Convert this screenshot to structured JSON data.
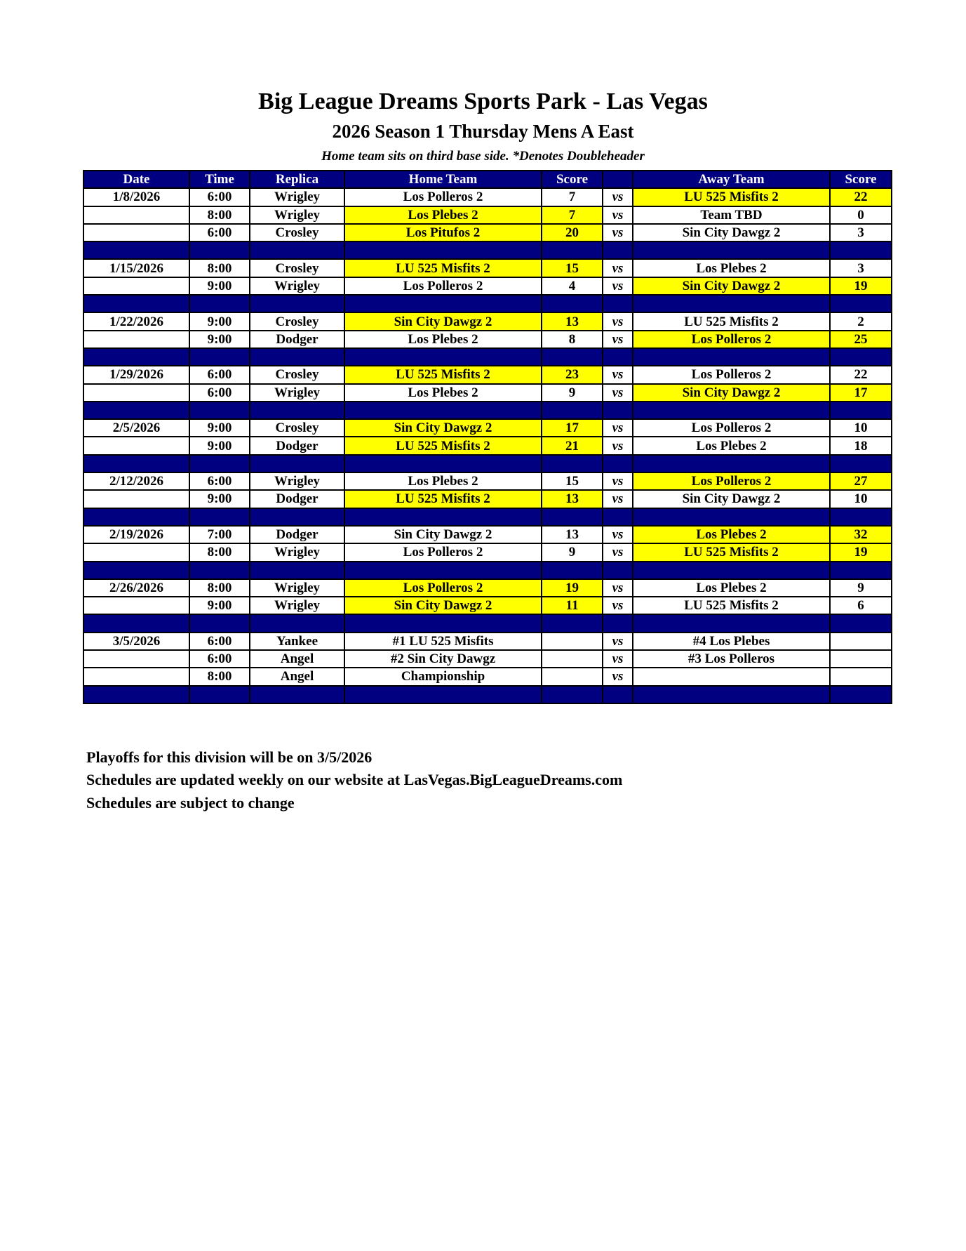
{
  "header": {
    "title": "Big League Dreams Sports Park - Las Vegas",
    "subtitle": "2026 Season 1 Thursday Mens A East",
    "note": "Home team sits on third base side.  *Denotes Doubleheader"
  },
  "colors": {
    "header_bg": "#000080",
    "winner_highlight": "#ffff00"
  },
  "table": {
    "columns": [
      "Date",
      "Time",
      "Replica",
      "Home Team",
      "Score",
      "",
      "Away Team",
      "Score"
    ],
    "rows": [
      {
        "date": "1/8/2026",
        "time": "6:00",
        "replica": "Wrigley",
        "home": "Los Polleros 2",
        "home_score": "7",
        "vs": "vs",
        "away": "LU 525 Misfits 2",
        "away_score": "22",
        "winner": "away"
      },
      {
        "date": "",
        "time": "8:00",
        "replica": "Wrigley",
        "home": "Los Plebes 2",
        "home_score": "7",
        "vs": "vs",
        "away": "Team TBD",
        "away_score": "0",
        "winner": "home"
      },
      {
        "date": "",
        "time": "6:00",
        "replica": "Crosley",
        "home": "Los Pitufos 2",
        "home_score": "20",
        "vs": "vs",
        "away": "Sin City Dawgz 2",
        "away_score": "3",
        "winner": "home"
      },
      {
        "separator": true
      },
      {
        "date": "1/15/2026",
        "time": "8:00",
        "replica": "Crosley",
        "home": "LU 525 Misfits 2",
        "home_score": "15",
        "vs": "vs",
        "away": "Los Plebes 2",
        "away_score": "3",
        "winner": "home"
      },
      {
        "date": "",
        "time": "9:00",
        "replica": "Wrigley",
        "home": "Los Polleros 2",
        "home_score": "4",
        "vs": "vs",
        "away": "Sin City Dawgz 2",
        "away_score": "19",
        "winner": "away"
      },
      {
        "separator": true
      },
      {
        "date": "1/22/2026",
        "time": "9:00",
        "replica": "Crosley",
        "home": "Sin City Dawgz 2",
        "home_score": "13",
        "vs": "vs",
        "away": "LU 525 Misfits 2",
        "away_score": "2",
        "winner": "home"
      },
      {
        "date": "",
        "time": "9:00",
        "replica": "Dodger",
        "home": "Los Plebes 2",
        "home_score": "8",
        "vs": "vs",
        "away": "Los Polleros 2",
        "away_score": "25",
        "winner": "away"
      },
      {
        "separator": true
      },
      {
        "date": "1/29/2026",
        "time": "6:00",
        "replica": "Crosley",
        "home": "LU 525 Misfits 2",
        "home_score": "23",
        "vs": "vs",
        "away": "Los Polleros 2",
        "away_score": "22",
        "winner": "home"
      },
      {
        "date": "",
        "time": "6:00",
        "replica": "Wrigley",
        "home": "Los Plebes 2",
        "home_score": "9",
        "vs": "vs",
        "away": "Sin City Dawgz 2",
        "away_score": "17",
        "winner": "away"
      },
      {
        "separator": true
      },
      {
        "date": "2/5/2026",
        "time": "9:00",
        "replica": "Crosley",
        "home": "Sin City Dawgz 2",
        "home_score": "17",
        "vs": "vs",
        "away": "Los Polleros 2",
        "away_score": "10",
        "winner": "home"
      },
      {
        "date": "",
        "time": "9:00",
        "replica": "Dodger",
        "home": "LU 525 Misfits 2",
        "home_score": "21",
        "vs": "vs",
        "away": "Los Plebes 2",
        "away_score": "18",
        "winner": "home"
      },
      {
        "separator": true
      },
      {
        "date": "2/12/2026",
        "time": "6:00",
        "replica": "Wrigley",
        "home": "Los Plebes 2",
        "home_score": "15",
        "vs": "vs",
        "away": "Los Polleros 2",
        "away_score": "27",
        "winner": "away"
      },
      {
        "date": "",
        "time": "9:00",
        "replica": "Dodger",
        "home": "LU 525 Misfits 2",
        "home_score": "13",
        "vs": "vs",
        "away": "Sin City Dawgz 2",
        "away_score": "10",
        "winner": "home"
      },
      {
        "separator": true
      },
      {
        "date": "2/19/2026",
        "time": "7:00",
        "replica": "Dodger",
        "home": "Sin City Dawgz 2",
        "home_score": "13",
        "vs": "vs",
        "away": "Los Plebes 2",
        "away_score": "32",
        "winner": "away"
      },
      {
        "date": "",
        "time": "8:00",
        "replica": "Wrigley",
        "home": "Los Polleros 2",
        "home_score": "9",
        "vs": "vs",
        "away": "LU 525 Misfits 2",
        "away_score": "19",
        "winner": "away"
      },
      {
        "separator": true
      },
      {
        "date": "2/26/2026",
        "time": "8:00",
        "replica": "Wrigley",
        "home": "Los Polleros 2",
        "home_score": "19",
        "vs": "vs",
        "away": "Los Plebes 2",
        "away_score": "9",
        "winner": "home"
      },
      {
        "date": "",
        "time": "9:00",
        "replica": "Wrigley",
        "home": "Sin City Dawgz 2",
        "home_score": "11",
        "vs": "vs",
        "away": "LU 525 Misfits 2",
        "away_score": "6",
        "winner": "home"
      },
      {
        "separator": true
      },
      {
        "date": "3/5/2026",
        "time": "6:00",
        "replica": "Yankee",
        "home": "#1 LU 525 Misfits",
        "home_score": "",
        "vs": "vs",
        "away": "#4 Los Plebes",
        "away_score": "",
        "winner": ""
      },
      {
        "date": "",
        "time": "6:00",
        "replica": "Angel",
        "home": "#2 Sin City Dawgz",
        "home_score": "",
        "vs": "vs",
        "away": "#3 Los Polleros",
        "away_score": "",
        "winner": ""
      },
      {
        "date": "",
        "time": "8:00",
        "replica": "Angel",
        "home": "Championship",
        "home_score": "",
        "vs": "vs",
        "away": "",
        "away_score": "",
        "winner": ""
      },
      {
        "separator": true
      }
    ]
  },
  "footer": [
    "Playoffs for this division will be on 3/5/2026",
    "Schedules are updated weekly on our website at LasVegas.BigLeagueDreams.com",
    "Schedules are subject to change"
  ]
}
